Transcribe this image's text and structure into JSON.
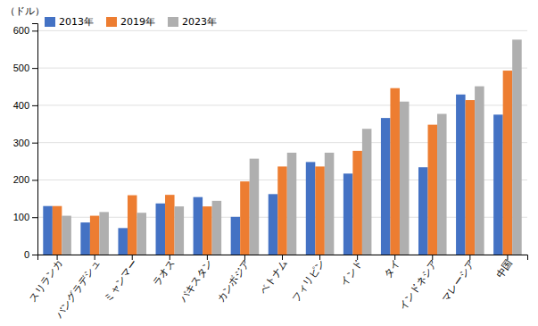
{
  "chart_data": {
    "type": "bar",
    "categories": [
      "スリランカ",
      "バングラデシュ",
      "ミャンマー",
      "ラオス",
      "パキスタン",
      "カンボジア",
      "ベトナム",
      "フィリピン",
      "インド",
      "タイ",
      "インドネシア",
      "マレーシア",
      "中国"
    ],
    "series": [
      {
        "name": "2013年",
        "color": "#4472C4",
        "values": [
          130,
          86,
          71,
          137,
          154,
          101,
          162,
          248,
          217,
          366,
          234,
          429,
          375
        ]
      },
      {
        "name": "2019年",
        "color": "#ED7D31",
        "values": [
          130,
          104,
          159,
          160,
          129,
          196,
          236,
          236,
          278,
          446,
          348,
          414,
          493
        ]
      },
      {
        "name": "2023年",
        "color": "#AFAFAF",
        "values": [
          104,
          114,
          112,
          129,
          144,
          257,
          273,
          273,
          337,
          410,
          377,
          451,
          576
        ]
      }
    ],
    "ylabel": "（ドル）",
    "ylim": [
      0,
      620
    ],
    "yticks": [
      0,
      100,
      200,
      300,
      400,
      500,
      600
    ],
    "grid": true,
    "legend": "upper left"
  }
}
